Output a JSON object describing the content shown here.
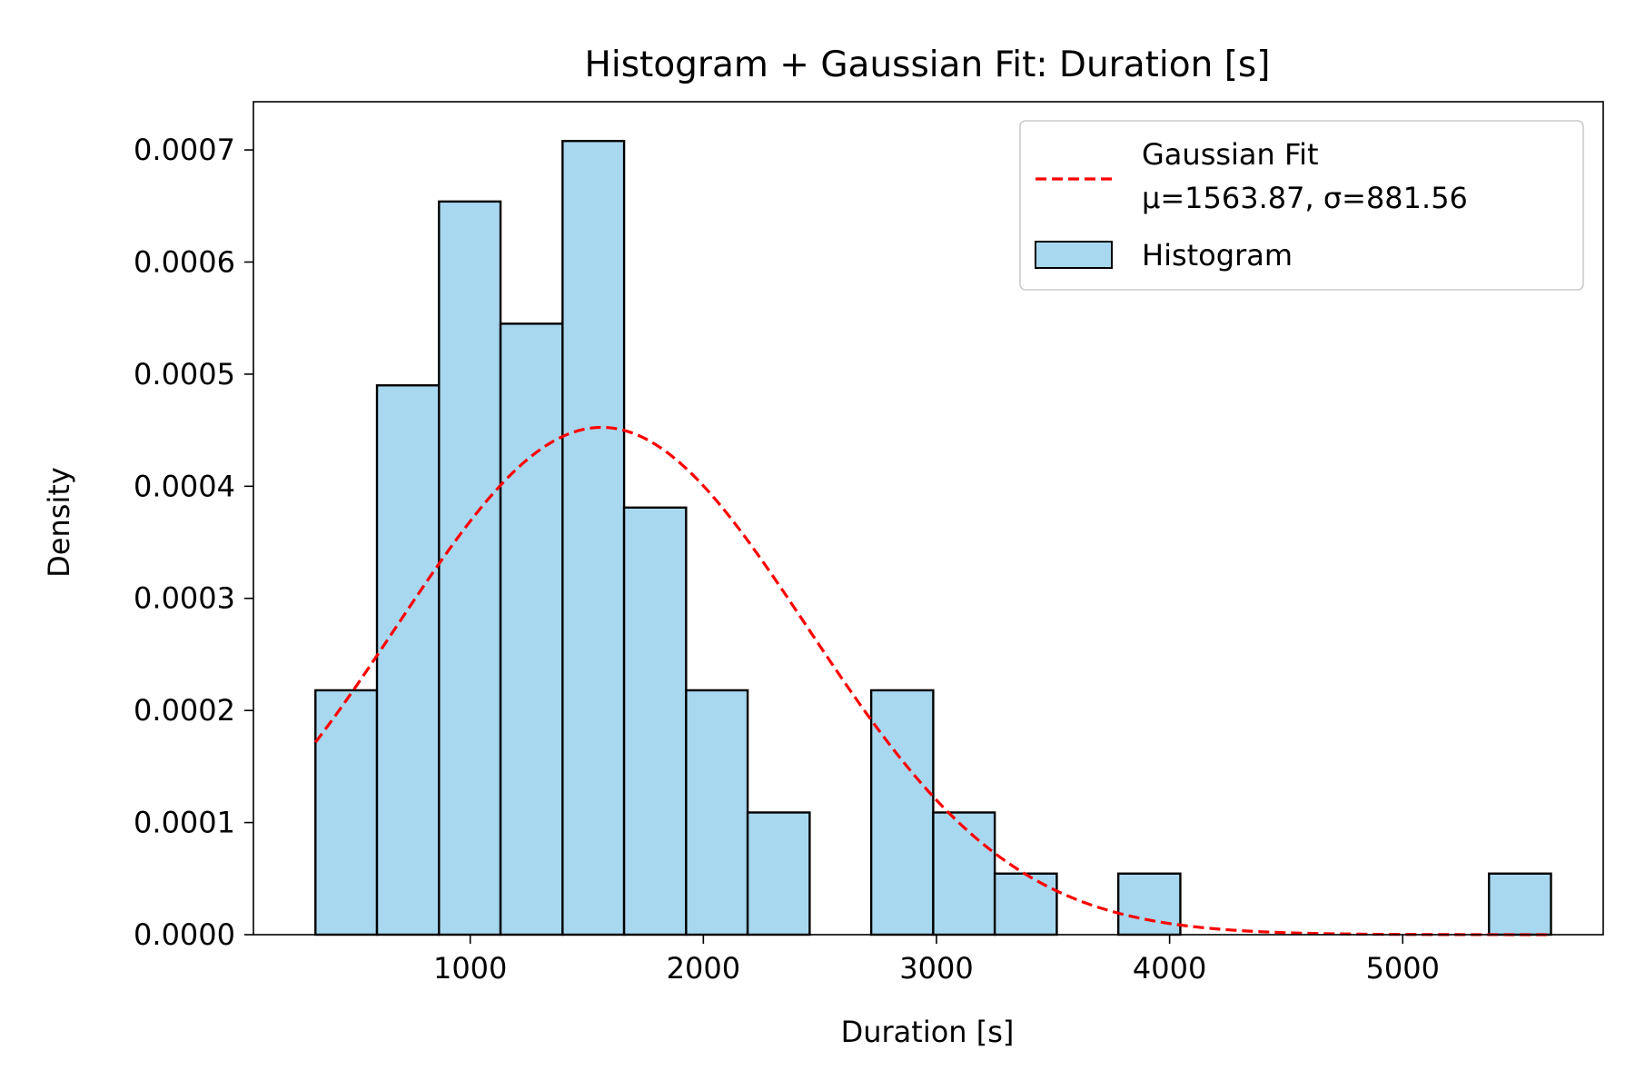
{
  "chart_data": {
    "type": "bar",
    "title": "Histogram + Gaussian Fit: Duration [s]",
    "xlabel": "Duration [s]",
    "ylabel": "Density",
    "xlim": [
      70,
      5860
    ],
    "ylim": [
      0,
      0.000743
    ],
    "xticks": [
      1000,
      2000,
      3000,
      4000,
      5000
    ],
    "xtick_labels": [
      "1000",
      "2000",
      "3000",
      "4000",
      "5000"
    ],
    "yticks": [
      0,
      0.0001,
      0.0002,
      0.0003,
      0.0004,
      0.0005,
      0.0006,
      0.0007
    ],
    "ytick_labels": [
      "0.0000",
      "0.0001",
      "0.0002",
      "0.0003",
      "0.0004",
      "0.0005",
      "0.0006",
      "0.0007"
    ],
    "grid": false,
    "legend_position": "top-right",
    "histogram": {
      "name": "Histogram",
      "color": "#a8d8ef",
      "edgecolor": "#000000",
      "bin_edges": [
        336,
        600,
        866,
        1130,
        1396,
        1660,
        1926,
        2190,
        2456,
        2720,
        2986,
        3250,
        3516,
        3780,
        4046,
        4310,
        4576,
        4840,
        5106,
        5370,
        5636
      ],
      "densities": [
        0.000218,
        0.00049,
        0.000654,
        0.000545,
        0.000708,
        0.000381,
        0.000218,
        0.000109,
        0,
        0.000218,
        0.000109,
        5.45e-05,
        0,
        5.45e-05,
        0,
        0,
        0,
        0,
        0,
        5.45e-05
      ]
    },
    "fit": {
      "name": "Gaussian Fit",
      "stats_label": "μ=1563.87, σ=881.56",
      "mu": 1563.87,
      "sigma": 881.56,
      "x_range": [
        336,
        5636
      ],
      "color": "#ff0000",
      "linestyle": "dashed"
    }
  }
}
